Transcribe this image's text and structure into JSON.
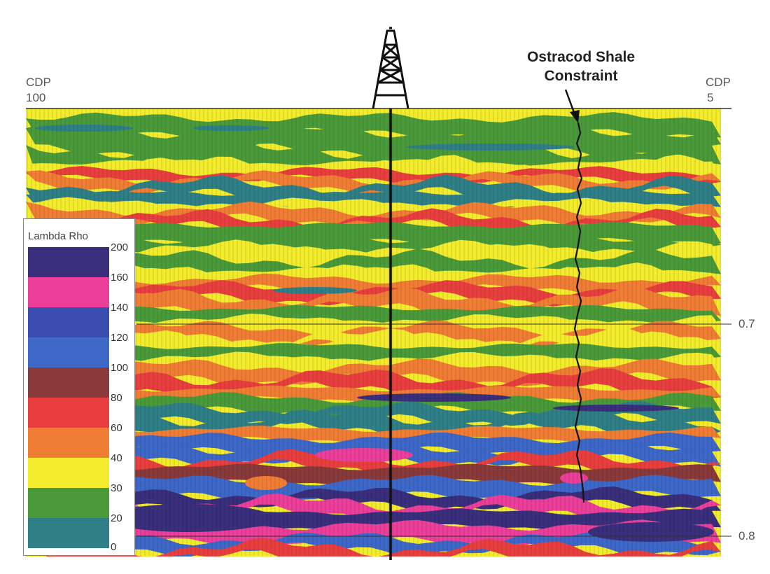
{
  "labels": {
    "cdp_left": "CDP",
    "cdp_left_num": "100",
    "cdp_right": "CDP",
    "cdp_right_num": "5",
    "annotation_line1": "Ostracod Shale",
    "annotation_line2": "Constraint",
    "time_07": "0.7",
    "time_08": "0.8"
  },
  "legend": {
    "title": "Lambda Rho",
    "bins": [
      {
        "tick": "200",
        "color": "#3a2f7d"
      },
      {
        "tick": "160",
        "color": "#ec3f9a"
      },
      {
        "tick": "140",
        "color": "#3b4db0"
      },
      {
        "tick": "120",
        "color": "#3d68c8"
      },
      {
        "tick": "100",
        "color": "#8a3a3a"
      },
      {
        "tick": "80",
        "color": "#e83e3e"
      },
      {
        "tick": "60",
        "color": "#ef7d33"
      },
      {
        "tick": "40",
        "color": "#f2ec2c"
      },
      {
        "tick": "30",
        "color": "#4a9a3a"
      },
      {
        "tick": "20",
        "color": "#2f7f86"
      }
    ],
    "bottom_tick": "0"
  },
  "colors": {
    "teal": "#2f7f86",
    "green": "#4a9a3a",
    "yellow": "#f2ec2c",
    "orange": "#ef7d33",
    "red": "#e83e3e",
    "brown": "#8a3a3a",
    "blue": "#3d68c8",
    "navy": "#3a2f7d",
    "magenta": "#ec3f9a"
  },
  "layers": [
    {
      "color": "yellow",
      "ratio": 0.0
    },
    {
      "color": "green",
      "ratio": 0.02
    },
    {
      "color": "green",
      "ratio": 0.05
    },
    {
      "color": "green",
      "ratio": 0.09
    },
    {
      "color": "yellow",
      "ratio": 0.12
    },
    {
      "color": "red",
      "ratio": 0.14
    },
    {
      "color": "orange",
      "ratio": 0.155
    },
    {
      "color": "teal",
      "ratio": 0.17
    },
    {
      "color": "teal",
      "ratio": 0.19
    },
    {
      "color": "yellow",
      "ratio": 0.21
    },
    {
      "color": "orange",
      "ratio": 0.225
    },
    {
      "color": "red",
      "ratio": 0.245
    },
    {
      "color": "green",
      "ratio": 0.26
    },
    {
      "color": "green",
      "ratio": 0.29
    },
    {
      "color": "yellow",
      "ratio": 0.31
    },
    {
      "color": "green",
      "ratio": 0.335
    },
    {
      "color": "yellow",
      "ratio": 0.36
    },
    {
      "color": "orange",
      "ratio": 0.38
    },
    {
      "color": "red",
      "ratio": 0.4
    },
    {
      "color": "orange",
      "ratio": 0.42
    },
    {
      "color": "green",
      "ratio": 0.445
    },
    {
      "color": "yellow",
      "ratio": 0.47
    },
    {
      "color": "orange",
      "ratio": 0.49
    },
    {
      "color": "yellow",
      "ratio": 0.51
    },
    {
      "color": "green",
      "ratio": 0.53
    },
    {
      "color": "yellow",
      "ratio": 0.555
    },
    {
      "color": "orange",
      "ratio": 0.575
    },
    {
      "color": "red",
      "ratio": 0.6
    },
    {
      "color": "orange",
      "ratio": 0.625
    },
    {
      "color": "green",
      "ratio": 0.645
    },
    {
      "color": "teal",
      "ratio": 0.67
    },
    {
      "color": "teal",
      "ratio": 0.69
    },
    {
      "color": "orange",
      "ratio": 0.715
    },
    {
      "color": "blue",
      "ratio": 0.735
    },
    {
      "color": "blue",
      "ratio": 0.76
    },
    {
      "color": "red",
      "ratio": 0.78
    },
    {
      "color": "brown",
      "ratio": 0.8
    },
    {
      "color": "blue",
      "ratio": 0.83
    },
    {
      "color": "navy",
      "ratio": 0.86
    },
    {
      "color": "magenta",
      "ratio": 0.88
    },
    {
      "color": "navy",
      "ratio": 0.9
    },
    {
      "color": "magenta",
      "ratio": 0.93
    },
    {
      "color": "blue",
      "ratio": 0.96
    },
    {
      "color": "red",
      "ratio": 0.98
    }
  ]
}
